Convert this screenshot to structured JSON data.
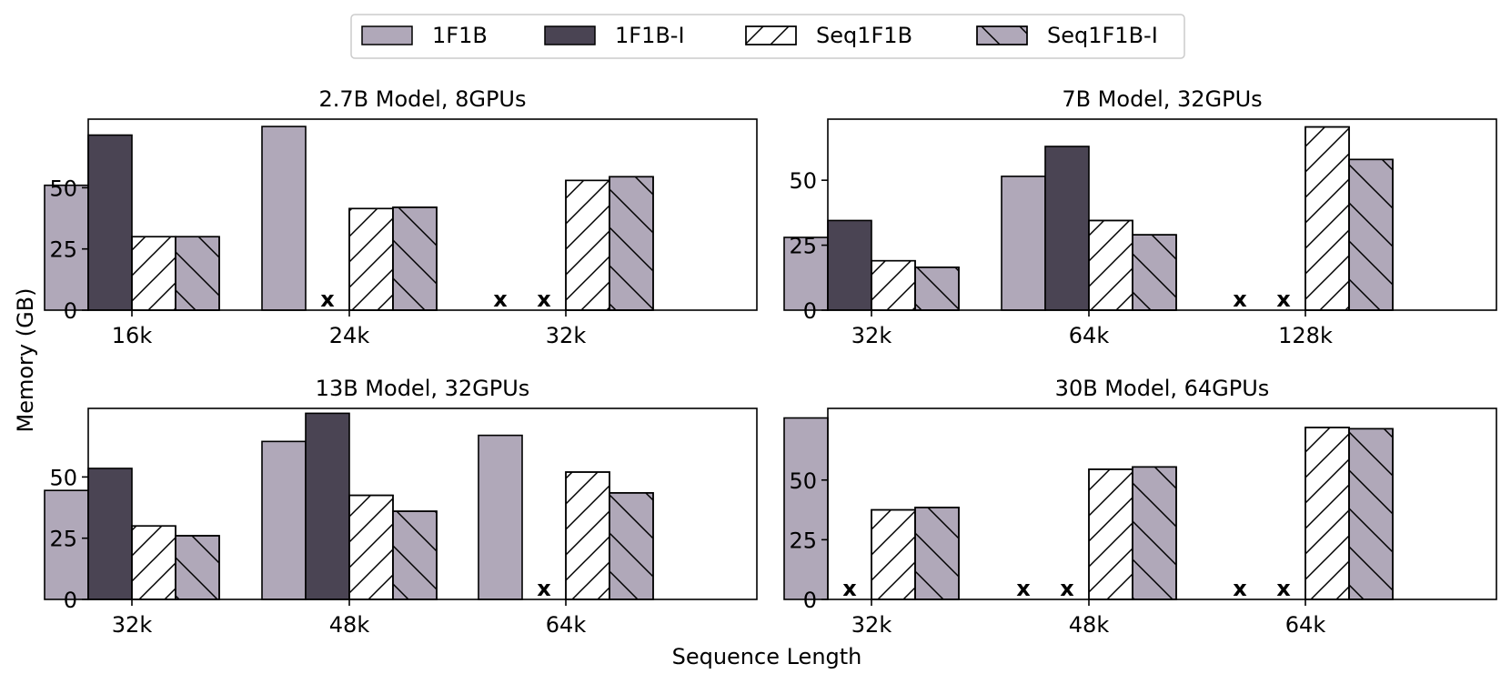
{
  "chart_data": {
    "type": "bar",
    "xlabel": "Sequence Length",
    "ylabel": "Memory (GB)",
    "oom_marker": "x",
    "colors": {
      "1F1B": "#b0a8b9",
      "1F1B-I": "#4a4453",
      "Seq1F1B": "#ffffff",
      "Seq1F1B-I": "#b0a8b9",
      "edge": "#000000"
    },
    "legend": {
      "placement": "top-center",
      "entries": [
        {
          "name": "1F1B",
          "hatch": "none"
        },
        {
          "name": "1F1B-I",
          "hatch": "none"
        },
        {
          "name": "Seq1F1B",
          "hatch": "forward-slash"
        },
        {
          "name": "Seq1F1B-I",
          "hatch": "back-slash"
        }
      ]
    },
    "subplots": [
      {
        "title": "2.7B Model, 8GPUs",
        "categories": [
          "16k",
          "24k",
          "32k"
        ],
        "ylim": [
          0,
          78
        ],
        "yticks": [
          0,
          25,
          50
        ],
        "series": [
          {
            "name": "1F1B",
            "values": [
              51,
              75,
              null
            ]
          },
          {
            "name": "1F1B-I",
            "values": [
              71.5,
              null,
              null
            ]
          },
          {
            "name": "Seq1F1B",
            "values": [
              30,
              41.5,
              53
            ]
          },
          {
            "name": "Seq1F1B-I",
            "values": [
              30,
              42,
              54.5
            ]
          }
        ]
      },
      {
        "title": "7B Model, 32GPUs",
        "categories": [
          "32k",
          "64k",
          "128k"
        ],
        "ylim": [
          0,
          73.5
        ],
        "yticks": [
          0,
          25,
          50
        ],
        "series": [
          {
            "name": "1F1B",
            "values": [
              28,
              51.5,
              null
            ]
          },
          {
            "name": "1F1B-I",
            "values": [
              34.5,
              63,
              null
            ]
          },
          {
            "name": "Seq1F1B",
            "values": [
              19,
              34.5,
              70.5
            ]
          },
          {
            "name": "Seq1F1B-I",
            "values": [
              16.5,
              29,
              58
            ]
          }
        ]
      },
      {
        "title": "13B Model, 32GPUs",
        "categories": [
          "32k",
          "48k",
          "64k"
        ],
        "ylim": [
          0,
          78
        ],
        "yticks": [
          0,
          25,
          50
        ],
        "series": [
          {
            "name": "1F1B",
            "values": [
              44.5,
              64.5,
              67
            ]
          },
          {
            "name": "1F1B-I",
            "values": [
              53.5,
              76,
              null
            ]
          },
          {
            "name": "Seq1F1B",
            "values": [
              30,
              42.5,
              52
            ]
          },
          {
            "name": "Seq1F1B-I",
            "values": [
              26,
              36,
              43.5
            ]
          }
        ]
      },
      {
        "title": "30B Model, 64GPUs",
        "categories": [
          "32k",
          "48k",
          "64k"
        ],
        "ylim": [
          0,
          80
        ],
        "yticks": [
          0,
          25,
          50
        ],
        "series": [
          {
            "name": "1F1B",
            "values": [
              76,
              null,
              null
            ]
          },
          {
            "name": "1F1B-I",
            "values": [
              null,
              null,
              null
            ]
          },
          {
            "name": "Seq1F1B",
            "values": [
              37.5,
              54.5,
              72
            ]
          },
          {
            "name": "Seq1F1B-I",
            "values": [
              38.5,
              55.5,
              71.5
            ]
          }
        ]
      }
    ]
  }
}
